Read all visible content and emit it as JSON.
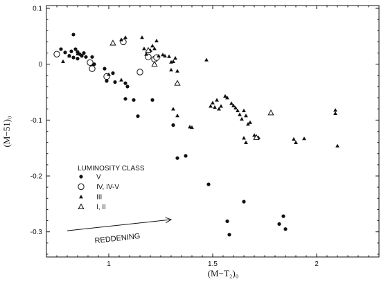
{
  "chart_data": {
    "type": "scatter",
    "title": "",
    "xlabel": "(M−T₂)₀",
    "ylabel": "(M−51)₀",
    "xlim": [
      0.7,
      2.3
    ],
    "ylim": [
      -0.345,
      0.105
    ],
    "x_ticks": [
      1,
      1.5,
      2
    ],
    "x_tick_labels": [
      "1",
      "1.5",
      "2"
    ],
    "y_ticks": [
      0.1,
      0,
      -0.1,
      -0.2,
      -0.3
    ],
    "y_tick_labels": [
      "0.1",
      "0",
      "-0.1",
      "-0.2",
      "-0.3"
    ],
    "grid": false,
    "legend": {
      "title": "LUMINOSITY CLASS",
      "placement": "lower-left",
      "entries": [
        {
          "marker": "filled-circle",
          "label": "V"
        },
        {
          "marker": "open-circle",
          "label": "IV, IV-V"
        },
        {
          "marker": "filled-triangle",
          "label": "III"
        },
        {
          "marker": "open-triangle",
          "label": "I, II"
        }
      ]
    },
    "annotations": [
      {
        "text": "REDDENING",
        "arrow_from": [
          0.8,
          -0.298
        ],
        "arrow_to": [
          1.3,
          -0.278
        ]
      }
    ],
    "series": [
      {
        "name": "V",
        "marker": "filled-circle",
        "points": [
          [
            0.77,
            0.027
          ],
          [
            0.82,
            0.023
          ],
          [
            0.83,
            0.053
          ],
          [
            0.79,
            0.021
          ],
          [
            0.81,
            0.015
          ],
          [
            0.84,
            0.027
          ],
          [
            0.85,
            0.022
          ],
          [
            0.86,
            0.018
          ],
          [
            0.87,
            0.015
          ],
          [
            0.88,
            0.02
          ],
          [
            0.83,
            0.012
          ],
          [
            0.85,
            0.01
          ],
          [
            0.89,
            0.013
          ],
          [
            0.91,
            0.005
          ],
          [
            0.92,
            0.013
          ],
          [
            0.93,
            0.0
          ],
          [
            0.92,
            -0.002
          ],
          [
            0.98,
            -0.008
          ],
          [
            0.99,
            -0.019
          ],
          [
            1.02,
            -0.016
          ],
          [
            0.99,
            -0.03
          ],
          [
            1.03,
            -0.032
          ],
          [
            1.08,
            -0.034
          ],
          [
            1.09,
            -0.04
          ],
          [
            1.08,
            -0.062
          ],
          [
            1.12,
            -0.064
          ],
          [
            1.21,
            -0.064
          ],
          [
            1.14,
            -0.093
          ],
          [
            1.31,
            -0.109
          ],
          [
            1.33,
            -0.168
          ],
          [
            1.37,
            -0.164
          ],
          [
            1.48,
            -0.215
          ],
          [
            1.57,
            -0.281
          ],
          [
            1.58,
            -0.305
          ],
          [
            1.65,
            -0.246
          ],
          [
            1.82,
            -0.286
          ],
          [
            1.84,
            -0.272
          ],
          [
            1.85,
            -0.295
          ]
        ]
      },
      {
        "name": "IV, IV-V",
        "marker": "open-circle",
        "points": [
          [
            0.75,
            0.018
          ],
          [
            0.91,
            0.003
          ],
          [
            0.92,
            -0.008
          ],
          [
            0.99,
            -0.022
          ],
          [
            1.07,
            0.04
          ],
          [
            1.15,
            -0.014
          ],
          [
            1.19,
            0.013
          ],
          [
            1.22,
            0.009
          ],
          [
            1.23,
            0.012
          ]
        ]
      },
      {
        "name": "III",
        "marker": "filled-triangle",
        "points": [
          [
            0.78,
            0.005
          ],
          [
            0.81,
            0.015
          ],
          [
            0.85,
            0.019
          ],
          [
            1.06,
            0.044
          ],
          [
            1.08,
            0.048
          ],
          [
            1.0,
            -0.018
          ],
          [
            1.06,
            -0.028
          ],
          [
            1.16,
            0.048
          ],
          [
            1.17,
            0.028
          ],
          [
            1.18,
            0.018
          ],
          [
            1.2,
            0.025
          ],
          [
            1.21,
            0.033
          ],
          [
            1.22,
            0.028
          ],
          [
            1.23,
            0.042
          ],
          [
            1.24,
            0.015
          ],
          [
            1.26,
            0.017
          ],
          [
            1.27,
            0.015
          ],
          [
            1.29,
            0.014
          ],
          [
            1.3,
            0.004
          ],
          [
            1.31,
            0.005
          ],
          [
            1.32,
            0.011
          ],
          [
            1.3,
            -0.01
          ],
          [
            1.33,
            -0.012
          ],
          [
            1.31,
            -0.08
          ],
          [
            1.33,
            -0.092
          ],
          [
            1.39,
            -0.112
          ],
          [
            1.4,
            -0.113
          ],
          [
            1.47,
            0.008
          ],
          [
            1.49,
            -0.075
          ],
          [
            1.5,
            -0.069
          ],
          [
            1.51,
            -0.077
          ],
          [
            1.52,
            -0.064
          ],
          [
            1.53,
            -0.08
          ],
          [
            1.54,
            -0.075
          ],
          [
            1.56,
            -0.057
          ],
          [
            1.57,
            -0.06
          ],
          [
            1.59,
            -0.07
          ],
          [
            1.61,
            -0.078
          ],
          [
            1.62,
            -0.083
          ],
          [
            1.63,
            -0.09
          ],
          [
            1.64,
            -0.098
          ],
          [
            1.65,
            -0.083
          ],
          [
            1.66,
            -0.092
          ],
          [
            1.67,
            -0.107
          ],
          [
            1.68,
            -0.104
          ],
          [
            1.6,
            -0.074
          ],
          [
            1.65,
            -0.132
          ],
          [
            1.66,
            -0.14
          ],
          [
            1.7,
            -0.127
          ],
          [
            1.72,
            -0.131
          ],
          [
            1.89,
            -0.134
          ],
          [
            1.9,
            -0.14
          ],
          [
            1.94,
            -0.133
          ],
          [
            2.09,
            -0.082
          ],
          [
            2.09,
            -0.088
          ],
          [
            2.1,
            -0.146
          ]
        ]
      },
      {
        "name": "I, II",
        "marker": "open-triangle",
        "points": [
          [
            1.02,
            0.038
          ],
          [
            1.19,
            0.025
          ],
          [
            1.22,
            0.0
          ],
          [
            1.33,
            -0.034
          ],
          [
            1.71,
            -0.131
          ],
          [
            1.78,
            -0.087
          ]
        ]
      }
    ]
  }
}
